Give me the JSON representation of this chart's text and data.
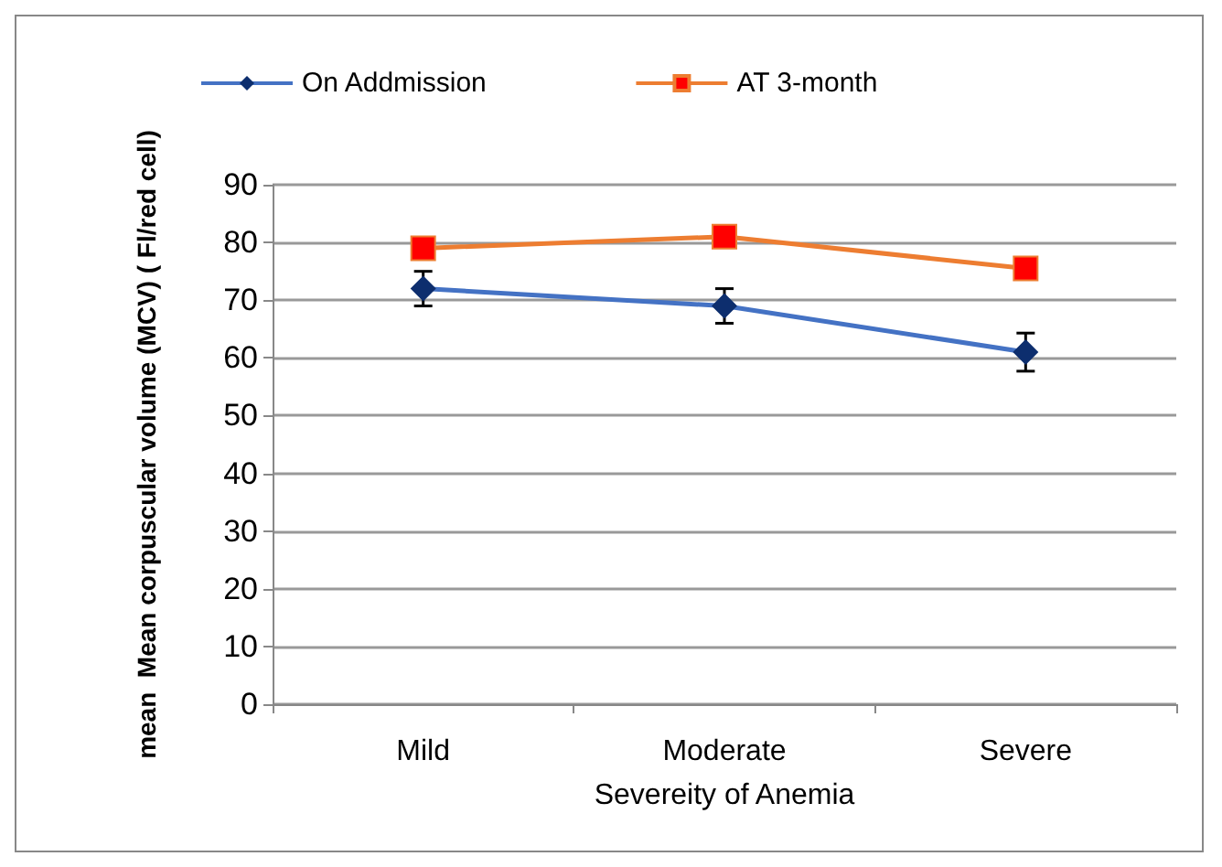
{
  "chart_data": {
    "type": "line",
    "xlabel": "Severeity of Anemia",
    "ylabel": "mean  Mean corpuscular volume (MCV) ( Fl/red cell)",
    "categories": [
      "Mild",
      "Moderate",
      "Severe"
    ],
    "series": [
      {
        "name": "On Addmission",
        "color": "#4472c4",
        "values": [
          72,
          69,
          61
        ],
        "errors": [
          3,
          3,
          3.3
        ],
        "marker": "diamond"
      },
      {
        "name": "AT 3-month",
        "color": "#ed7d31",
        "values": [
          79,
          81,
          75.5
        ],
        "marker": "square"
      }
    ],
    "ylim": [
      0,
      90
    ],
    "yticks": [
      0,
      10,
      20,
      30,
      40,
      50,
      60,
      70,
      80,
      90
    ],
    "grid": "y",
    "legend": "top left"
  }
}
